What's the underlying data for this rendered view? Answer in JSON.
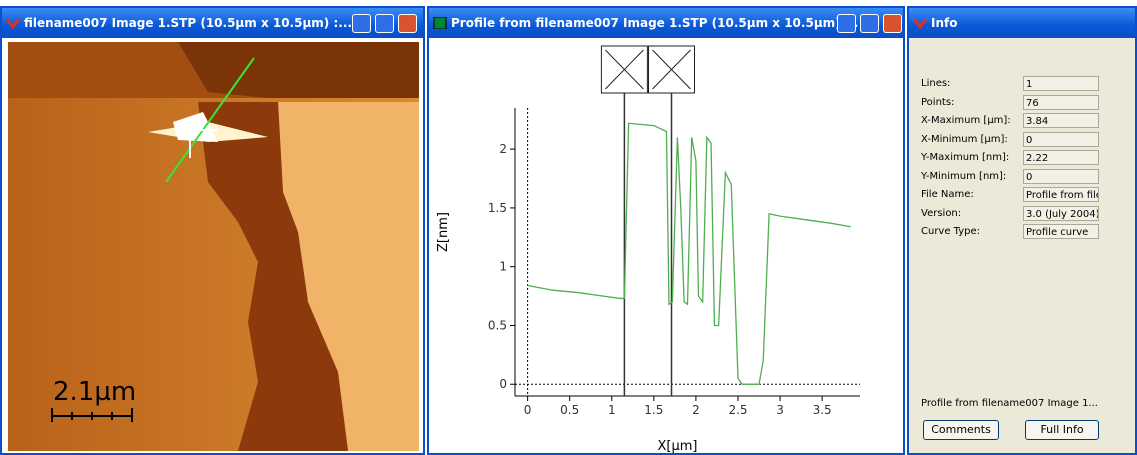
{
  "image_window": {
    "title": "filename007 Image 1.STP (10.5µm x 10.5µm) :...",
    "scale_bar": "2.1µm"
  },
  "profile_window": {
    "title": "Profile from filename007 Image 1.STP (10.5µm x 10.5µm) ..."
  },
  "chart_data": {
    "type": "line",
    "xlabel": "X[µm]",
    "ylabel": "Z[nm]",
    "x": [
      0,
      0.3,
      0.6,
      0.9,
      1.1,
      1.15,
      1.2,
      1.5,
      1.65,
      1.68,
      1.72,
      1.78,
      1.82,
      1.86,
      1.9,
      1.95,
      2.0,
      2.03,
      2.08,
      2.13,
      2.18,
      2.22,
      2.27,
      2.35,
      2.42,
      2.5,
      2.55,
      2.75,
      2.8,
      2.87,
      3.0,
      3.3,
      3.6,
      3.84
    ],
    "series": [
      {
        "color": "#4fae4f",
        "values": [
          0.84,
          0.8,
          0.78,
          0.75,
          0.73,
          0.73,
          2.22,
          2.2,
          2.15,
          0.68,
          0.7,
          2.1,
          1.5,
          0.7,
          0.68,
          2.1,
          1.9,
          0.75,
          0.7,
          2.1,
          2.05,
          0.5,
          0.5,
          1.8,
          1.7,
          0.05,
          0,
          0,
          0.2,
          1.45,
          1.43,
          1.4,
          1.37,
          1.34
        ]
      }
    ],
    "cursors": [
      1.15,
      1.71
    ],
    "xlim": [
      -0.15,
      3.95
    ],
    "ylim": [
      -0.1,
      2.35
    ],
    "xticks": [
      0,
      0.5,
      1,
      1.5,
      2,
      2.5,
      3,
      3.5
    ],
    "yticks": [
      0,
      0.5,
      1,
      1.5,
      2
    ]
  },
  "info_window": {
    "title": "Info",
    "rows": [
      [
        "Lines:",
        "1"
      ],
      [
        "Points:",
        "76"
      ],
      [
        "X-Maximum [µm]:",
        "3.84"
      ],
      [
        "X-Minimum [µm]:",
        "0"
      ],
      [
        "Y-Maximum [nm]:",
        "2.22"
      ],
      [
        "Y-Minimum [nm]:",
        "0"
      ],
      [
        "File Name:",
        "Profile from file"
      ],
      [
        "Version:",
        "3.0 (July 2004)"
      ],
      [
        "Curve Type:",
        "Profile curve"
      ]
    ],
    "status": "Profile from filename007 Image 1...",
    "buttons": [
      "Comments",
      "Full Info"
    ]
  }
}
